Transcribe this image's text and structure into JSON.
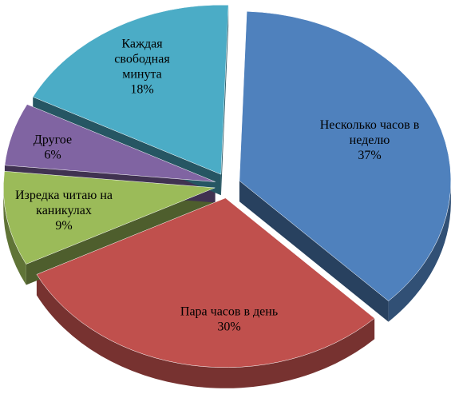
{
  "chart_data": {
    "type": "pie",
    "title": "",
    "exploded": true,
    "three_d": true,
    "slices": [
      {
        "label_lines": [
          "Несколько часов в",
          "неделю"
        ],
        "percent_label": "37%",
        "value": 37,
        "color": "#4f81bd"
      },
      {
        "label_lines": [
          "Пара часов в день"
        ],
        "percent_label": "30%",
        "value": 30,
        "color": "#c0504d"
      },
      {
        "label_lines": [
          "Изредка читаю на",
          "каникулах"
        ],
        "percent_label": "9%",
        "value": 9,
        "color": "#9bbb59"
      },
      {
        "label_lines": [
          "Другое"
        ],
        "percent_label": "6%",
        "value": 6,
        "color": "#8064a2"
      },
      {
        "label_lines": [
          "Каждая",
          "свободная",
          "минута"
        ],
        "percent_label": "18%",
        "value": 18,
        "color": "#4bacc6"
      }
    ]
  }
}
